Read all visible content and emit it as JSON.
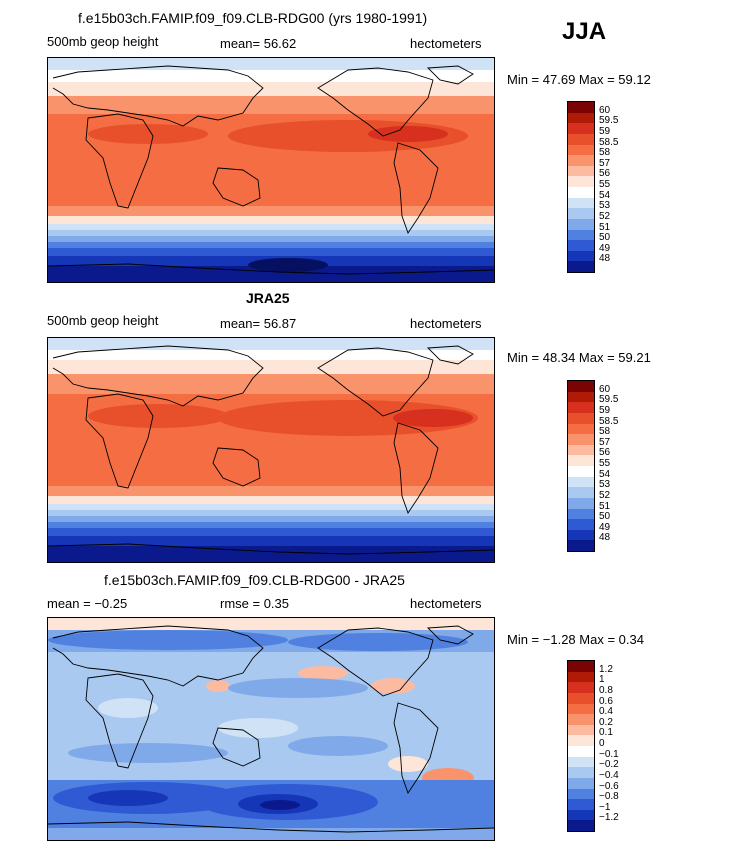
{
  "season": "JJA",
  "panels": [
    {
      "title": "f.e15b03ch.FAMIP.f09_f09.CLB-RDG00 (yrs 1980-1991)",
      "left_label": "500mb geop height",
      "center_label": "mean=  56.62",
      "right_label": "hectometers",
      "minmax": "Min =  47.69 Max =  59.12",
      "kind": "abs",
      "levels": [
        "60",
        "59.5",
        "59",
        "58.5",
        "58",
        "57",
        "56",
        "55",
        "54",
        "53",
        "52",
        "51",
        "50",
        "49",
        "48"
      ]
    },
    {
      "title": "JRA25",
      "left_label": "500mb geop height",
      "center_label": "mean=  56.87",
      "right_label": "hectometers",
      "minmax": "Min =  48.34 Max =  59.21",
      "kind": "abs",
      "levels": [
        "60",
        "59.5",
        "59",
        "58.5",
        "58",
        "57",
        "56",
        "55",
        "54",
        "53",
        "52",
        "51",
        "50",
        "49",
        "48"
      ]
    },
    {
      "title": "f.e15b03ch.FAMIP.f09_f09.CLB-RDG00 - JRA25",
      "left_label": "mean =  −0.25",
      "center_label": "rmse =   0.35",
      "right_label": "hectometers",
      "minmax": "Min =  −1.28 Max =   0.34",
      "kind": "diff",
      "levels": [
        "1.2",
        "1",
        "0.8",
        "0.6",
        "0.4",
        "0.2",
        "0.1",
        "0",
        "−0.1",
        "−0.2",
        "−0.4",
        "−0.6",
        "−0.8",
        "−1",
        "−1.2"
      ]
    }
  ],
  "palette": [
    "#7a0403",
    "#b01b07",
    "#d7301f",
    "#e8502b",
    "#f46d43",
    "#f9936b",
    "#fcbba1",
    "#fde6d8",
    "#ffffff",
    "#cfe2f6",
    "#a9c9f0",
    "#7fa9e8",
    "#5181e0",
    "#2f5ad4",
    "#1636b8",
    "#0a1a8c"
  ]
}
